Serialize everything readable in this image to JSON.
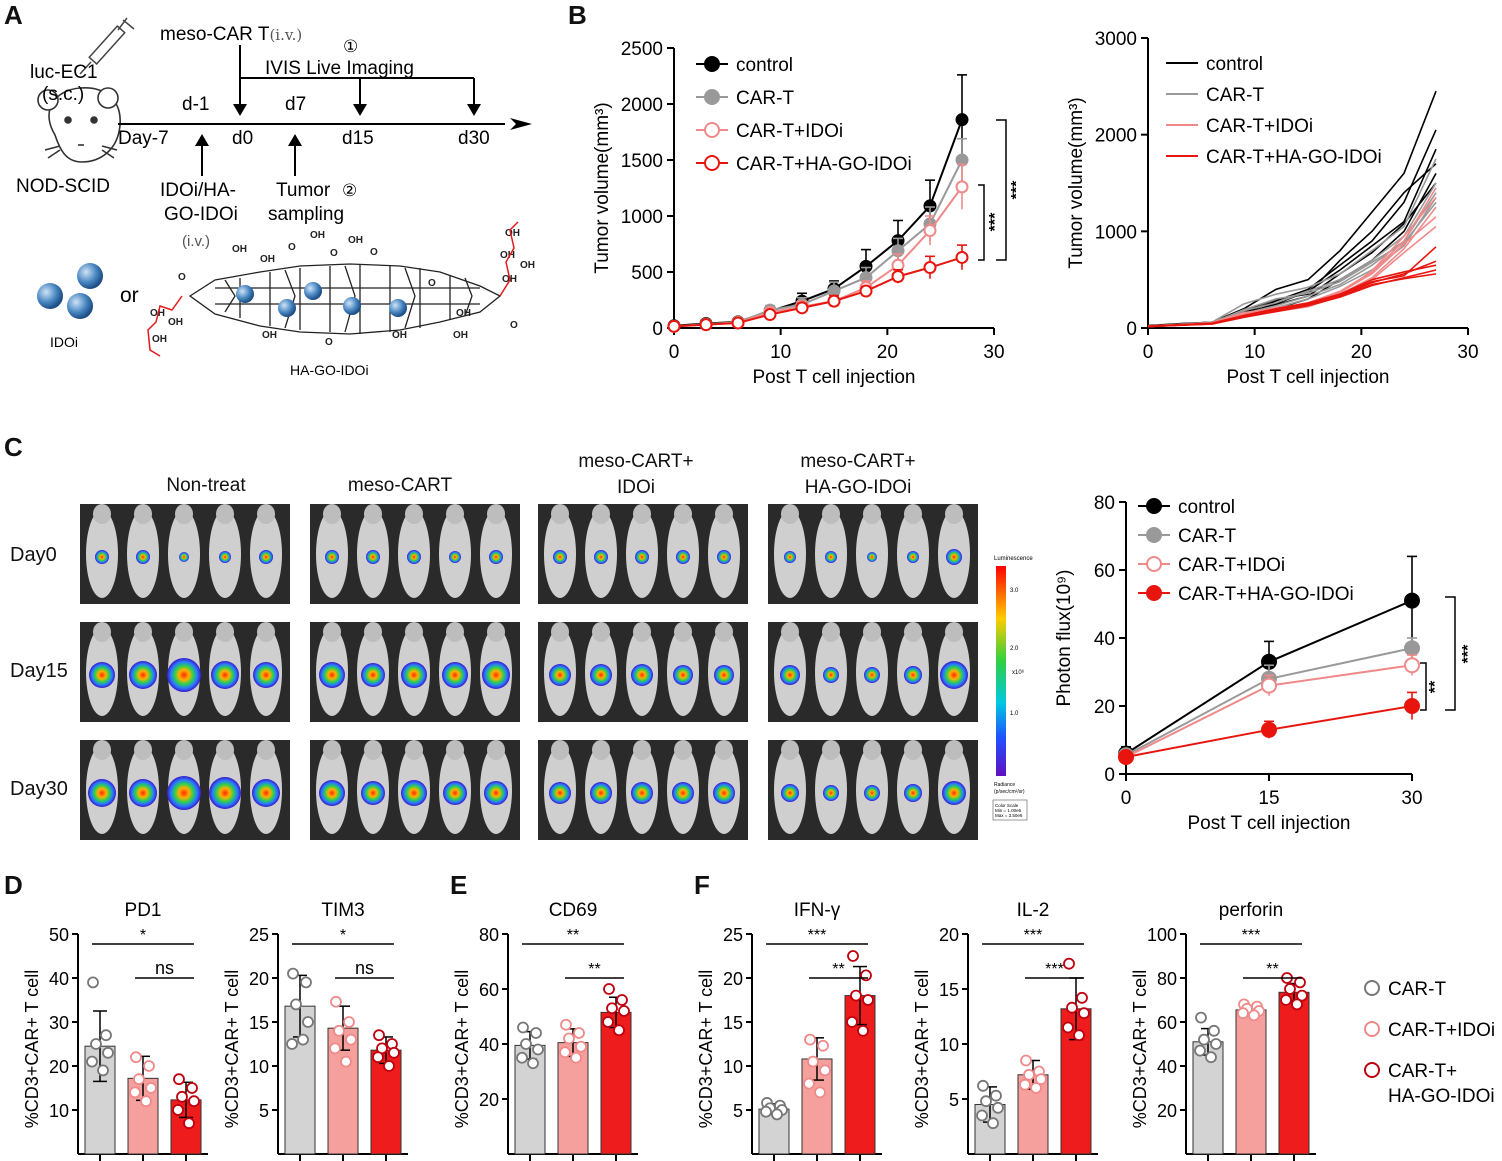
{
  "panels": {
    "a": "A",
    "b": "B",
    "c": "C",
    "d": "D",
    "e": "E",
    "f": "F"
  },
  "schematic": {
    "mouse_injection": "luc-EC1",
    "mouse_route": "(s.c.)",
    "strain": "NOD-SCID",
    "car_t": "meso-CAR T",
    "car_t_route": "(i.v.)",
    "imaging": "IVIS Live Imaging",
    "imaging_num": "①",
    "sampling_num": "②",
    "days": [
      "Day-7",
      "d-1",
      "d0",
      "d7",
      "d15",
      "d30"
    ],
    "drug_line1": "IDOi/HA-",
    "drug_line2": "GO-IDOi",
    "drug_route": "(i.v.)",
    "tumor_line1": "Tumor",
    "tumor_line2": "sampling",
    "idoi_label": "IDOi",
    "or_label": "or",
    "hago_label": "HA-GO-IDOi",
    "struct_labels": [
      "OH",
      "OH",
      "O",
      "OH",
      "O",
      "OH",
      "O",
      "O",
      "OH",
      "O",
      "OH",
      "O",
      "OH",
      "OH",
      "OH",
      "O",
      "OH",
      "OH",
      "OH",
      "OH",
      "OH",
      "OH"
    ]
  },
  "imaging": {
    "groups": [
      [
        "Non-treat"
      ],
      [
        "meso-CART"
      ],
      [
        "meso-CART+",
        "IDOi"
      ],
      [
        "meso-CART+",
        "HA-GO-IDOi"
      ]
    ],
    "days": [
      "Day0",
      "Day15",
      "Day30"
    ],
    "colorbar_title": "Luminescence",
    "colorbar_ticks": [
      "3.0",
      "2.0",
      "1.0"
    ],
    "colorbar_unit": "x10⁶",
    "colorbar_footer": [
      "Radiance",
      "(p/sec/cm²/sr)",
      "Color Scale",
      "Min = 1.00e6",
      "Max = 3.50e6"
    ]
  },
  "colors": {
    "control": "#000000",
    "cart": "#999999",
    "idoi": "#f08a8a",
    "hago": "#e8150f",
    "bar_gray": "#d3d3d3",
    "bar_pink": "#f5a09c",
    "bar_red": "#ee1c1c"
  },
  "chart_data": [
    {
      "id": "B-left",
      "type": "line",
      "ylabel": "Tumor volume(mm³)",
      "xlabel": "Post T cell injection",
      "xlim": [
        0,
        30
      ],
      "ylim": [
        0,
        2500
      ],
      "xticks": [
        0,
        10,
        20,
        30
      ],
      "yticks": [
        0,
        500,
        1000,
        1500,
        2000,
        2500
      ],
      "x": [
        0,
        3,
        6,
        9,
        12,
        15,
        18,
        21,
        24,
        27
      ],
      "series": [
        {
          "name": "control",
          "style": "filled",
          "color": "#000000",
          "values": [
            20,
            40,
            55,
            150,
            240,
            350,
            550,
            780,
            1090,
            1860
          ],
          "err": [
            10,
            15,
            15,
            30,
            70,
            70,
            150,
            180,
            230,
            400
          ]
        },
        {
          "name": "CAR-T",
          "style": "filled",
          "color": "#999999",
          "values": [
            15,
            35,
            50,
            160,
            210,
            330,
            450,
            690,
            930,
            1500
          ],
          "err": [
            10,
            15,
            15,
            40,
            60,
            80,
            90,
            110,
            150,
            190
          ]
        },
        {
          "name": "CAR-T+IDOi",
          "style": "open",
          "color": "#f08a8a",
          "values": [
            15,
            30,
            50,
            140,
            190,
            240,
            360,
            560,
            870,
            1260
          ],
          "err": [
            10,
            15,
            15,
            30,
            50,
            50,
            60,
            100,
            130,
            200
          ]
        },
        {
          "name": "CAR-T+HA-GO-IDOi",
          "style": "open",
          "color": "#e8150f",
          "values": [
            15,
            30,
            45,
            120,
            180,
            240,
            330,
            460,
            540,
            630
          ],
          "err": [
            8,
            10,
            10,
            30,
            40,
            50,
            40,
            60,
            100,
            110
          ]
        }
      ],
      "significance": [
        "***",
        "***"
      ]
    },
    {
      "id": "B-right",
      "type": "line",
      "ylabel": "Tumor volume(mm³)",
      "xlabel": "Post T cell injection",
      "xlim": [
        0,
        30
      ],
      "ylim": [
        0,
        3000
      ],
      "xticks": [
        0,
        10,
        20,
        30
      ],
      "yticks": [
        0,
        1000,
        2000,
        3000
      ],
      "legend": [
        "control",
        "CAR-T",
        "CAR-T+IDOi",
        "CAR-T+HA-GO-IDOi"
      ],
      "x": [
        0,
        3,
        6,
        9,
        12,
        15,
        18,
        21,
        24,
        27
      ],
      "series": [
        {
          "name": "control",
          "color": "#000000",
          "values": [
            [
              20,
              40,
              60,
              200,
              400,
              500,
              800,
              1200,
              1600,
              2450
            ],
            [
              25,
              45,
              60,
              160,
              280,
              400,
              650,
              900,
              1300,
              2050
            ],
            [
              20,
              35,
              55,
              150,
              250,
              380,
              600,
              850,
              1100,
              1850
            ],
            [
              15,
              40,
              60,
              180,
              300,
              350,
              700,
              1000,
              1400,
              1700
            ],
            [
              20,
              45,
              50,
              130,
              200,
              300,
              500,
              700,
              1000,
              1600
            ],
            [
              18,
              40,
              55,
              140,
              240,
              330,
              560,
              780,
              1080,
              1500
            ]
          ]
        },
        {
          "name": "CAR-T",
          "color": "#999999",
          "values": [
            [
              20,
              40,
              60,
              250,
              350,
              420,
              560,
              800,
              1050,
              1750
            ],
            [
              15,
              35,
              55,
              180,
              260,
              380,
              500,
              700,
              950,
              1500
            ],
            [
              20,
              40,
              50,
              150,
              230,
              330,
              450,
              650,
              900,
              1400
            ],
            [
              15,
              30,
              45,
              130,
              210,
              300,
              430,
              600,
              850,
              1350
            ],
            [
              20,
              35,
              55,
              190,
              300,
              360,
              480,
              680,
              880,
              1300
            ]
          ]
        },
        {
          "name": "CAR-T+IDOi",
          "color": "#f08a8a",
          "values": [
            [
              20,
              30,
              50,
              140,
              200,
              260,
              380,
              580,
              900,
              1450
            ],
            [
              15,
              30,
              45,
              130,
              180,
              230,
              350,
              520,
              820,
              1250
            ],
            [
              20,
              35,
              50,
              150,
              210,
              250,
              370,
              560,
              870,
              1150
            ],
            [
              15,
              30,
              50,
              120,
              170,
              220,
              330,
              500,
              780,
              1050
            ],
            [
              18,
              35,
              55,
              160,
              200,
              240,
              360,
              590,
              950,
              1350
            ]
          ]
        },
        {
          "name": "CAR-T+HA-GO-IDOi",
          "color": "#e8150f",
          "values": [
            [
              15,
              30,
              45,
              120,
              180,
              240,
              330,
              470,
              560,
              690
            ],
            [
              20,
              35,
              50,
              130,
              200,
              260,
              350,
              500,
              580,
              650
            ],
            [
              15,
              30,
              40,
              110,
              170,
              230,
              320,
              440,
              520,
              600
            ],
            [
              18,
              32,
              45,
              125,
              190,
              250,
              340,
              480,
              540,
              840
            ],
            [
              15,
              28,
              42,
              115,
              175,
              235,
              325,
              450,
              510,
              560
            ]
          ]
        }
      ]
    },
    {
      "id": "C-right",
      "type": "line",
      "ylabel": "Photon flux(10⁹)",
      "xlabel": "Post T cell injection",
      "xlim": [
        0,
        30
      ],
      "ylim": [
        0,
        80
      ],
      "xticks": [
        0,
        15,
        30
      ],
      "yticks": [
        0,
        20,
        40,
        60,
        80
      ],
      "x": [
        0,
        15,
        30
      ],
      "series": [
        {
          "name": "control",
          "style": "filled",
          "color": "#000000",
          "values": [
            6,
            33,
            51
          ],
          "err": [
            2,
            6,
            13
          ]
        },
        {
          "name": "CAR-T",
          "style": "filled",
          "color": "#999999",
          "values": [
            5.5,
            28,
            37
          ],
          "err": [
            1.5,
            4,
            3
          ]
        },
        {
          "name": "CAR-T+IDOi",
          "style": "open",
          "color": "#f08a8a",
          "values": [
            5,
            26,
            32
          ],
          "err": [
            1.5,
            3,
            3
          ]
        },
        {
          "name": "CAR-T+HA-GO-IDOi",
          "style": "filled",
          "color": "#e8150f",
          "values": [
            5,
            13,
            20
          ],
          "err": [
            1,
            2.5,
            4
          ]
        }
      ],
      "significance": [
        "***",
        "**"
      ]
    },
    {
      "id": "D-PD1",
      "type": "bar",
      "title": "PD1",
      "ylabel": "%CD3+CAR+ T cell",
      "ylim": [
        0,
        50
      ],
      "yticks": [
        10,
        20,
        30,
        40,
        50
      ],
      "categories": [
        "CAR-T",
        "CAR-T+IDOi",
        "CAR-T+HA-GO-IDOi"
      ],
      "values": [
        24.5,
        17.2,
        12.3
      ],
      "err": [
        8,
        5,
        4
      ],
      "points": [
        [
          39,
          27,
          25,
          23,
          21,
          19
        ],
        [
          22,
          20,
          17,
          15,
          14,
          12
        ],
        [
          17,
          15,
          13,
          12,
          10,
          7
        ]
      ],
      "sig": [
        {
          "a": 0,
          "b": 2,
          "t": "*"
        },
        {
          "a": 1,
          "b": 2,
          "t": "ns"
        }
      ]
    },
    {
      "id": "D-TIM3",
      "type": "bar",
      "title": "TIM3",
      "ylabel": "%CD3+CAR+ T cell",
      "ylim": [
        0,
        25
      ],
      "yticks": [
        5,
        10,
        15,
        20,
        25
      ],
      "categories": [
        "CAR-T",
        "CAR-T+IDOi",
        "CAR-T+HA-GO-IDOi"
      ],
      "values": [
        16.8,
        14.3,
        11.8
      ],
      "err": [
        3.5,
        2.5,
        1.5
      ],
      "points": [
        [
          20.5,
          19.5,
          17,
          15,
          12.5,
          13
        ],
        [
          17.3,
          15,
          14,
          13,
          12,
          10.5
        ],
        [
          13.5,
          12.5,
          12,
          11.5,
          11,
          10
        ]
      ],
      "sig": [
        {
          "a": 0,
          "b": 2,
          "t": "*"
        },
        {
          "a": 1,
          "b": 2,
          "t": "ns"
        }
      ]
    },
    {
      "id": "E-CD69",
      "type": "bar",
      "title": "CD69",
      "ylabel": "%CD3+CAR+ T cell",
      "ylim": [
        0,
        80
      ],
      "yticks": [
        20,
        40,
        60,
        80
      ],
      "categories": [
        "CAR-T",
        "CAR-T+IDOi",
        "CAR-T+HA-GO-IDOi"
      ],
      "values": [
        39.5,
        40.5,
        51.5
      ],
      "err": [
        5,
        5,
        5.5
      ],
      "points": [
        [
          46,
          44,
          40,
          38,
          35,
          33
        ],
        [
          47,
          44,
          42,
          39,
          37,
          35
        ],
        [
          60,
          56,
          53,
          52,
          48,
          45
        ]
      ],
      "sig": [
        {
          "a": 0,
          "b": 2,
          "t": "**"
        },
        {
          "a": 1,
          "b": 2,
          "t": "**"
        }
      ]
    },
    {
      "id": "F-IFNg",
      "type": "bar",
      "title": "IFN-γ",
      "ylabel": "%CD3+CAR+ T cell",
      "ylim": [
        0,
        25
      ],
      "yticks": [
        5,
        10,
        15,
        20,
        25
      ],
      "categories": [
        "CAR-T",
        "CAR-T+IDOi",
        "CAR-T+HA-GO-IDOi"
      ],
      "values": [
        5.1,
        10.8,
        18
      ],
      "err": [
        0.6,
        2.4,
        3.3
      ],
      "points": [
        [
          5.8,
          5.5,
          5.2,
          5,
          4.8,
          4.5
        ],
        [
          13,
          12.3,
          10.5,
          9.5,
          8,
          7
        ],
        [
          22.5,
          20.3,
          18,
          17.5,
          15,
          14
        ]
      ],
      "sig": [
        {
          "a": 0,
          "b": 2,
          "t": "***"
        },
        {
          "a": 1,
          "b": 2,
          "t": "**"
        }
      ]
    },
    {
      "id": "F-IL2",
      "type": "bar",
      "title": "IL-2",
      "ylabel": "%CD3+CAR+ T cell",
      "ylim": [
        0,
        20
      ],
      "yticks": [
        5,
        10,
        15,
        20
      ],
      "categories": [
        "CAR-T",
        "CAR-T+IDOi",
        "CAR-T+HA-GO-IDOi"
      ],
      "values": [
        4.5,
        7.2,
        13.2
      ],
      "err": [
        1.6,
        1.3,
        2.8
      ],
      "points": [
        [
          6.2,
          5.3,
          4.8,
          4.2,
          3.5,
          2.8
        ],
        [
          8.5,
          7.5,
          7.2,
          6.8,
          6.3,
          6
        ],
        [
          17.3,
          14.2,
          13.3,
          12.8,
          11.5,
          10.8
        ]
      ],
      "sig": [
        {
          "a": 0,
          "b": 2,
          "t": "***"
        },
        {
          "a": 1,
          "b": 2,
          "t": "***"
        }
      ]
    },
    {
      "id": "F-perforin",
      "type": "bar",
      "title": "perforin",
      "ylabel": "%CD3+CAR+ T cell",
      "ylim": [
        0,
        100
      ],
      "yticks": [
        20,
        40,
        60,
        80,
        100
      ],
      "categories": [
        "CAR-T",
        "CAR-T+IDOi",
        "CAR-T+HA-GO-IDOi"
      ],
      "values": [
        51,
        65.5,
        73.5
      ],
      "err": [
        6,
        2,
        4
      ],
      "points": [
        [
          62,
          56,
          52,
          50,
          47,
          44
        ],
        [
          68,
          67,
          66,
          65,
          64,
          63
        ],
        [
          80,
          78,
          75,
          72,
          70,
          68
        ]
      ],
      "sig": [
        {
          "a": 0,
          "b": 2,
          "t": "***"
        },
        {
          "a": 1,
          "b": 2,
          "t": "**"
        }
      ]
    }
  ],
  "bar_legend": [
    "CAR-T",
    "CAR-T+IDOi",
    "CAR-T+",
    "HA-GO-IDOi"
  ]
}
